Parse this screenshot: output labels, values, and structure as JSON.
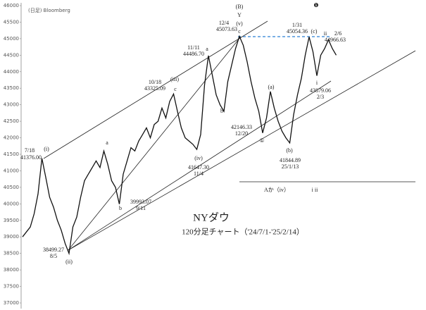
{
  "chart_data": {
    "type": "line",
    "title": "NYダウ",
    "subtitle": "120分足チャート（'24/7/1-'25/2/14）",
    "source": "(日足) Bloomberg",
    "color": "#111111",
    "ylim": [
      37000,
      46000
    ],
    "yticks": [
      37000,
      37500,
      38000,
      38500,
      39000,
      39500,
      40000,
      40500,
      41000,
      41500,
      42000,
      42500,
      43000,
      43500,
      44000,
      44500,
      45000,
      45500,
      46000
    ],
    "values": [
      39000,
      39150,
      39300,
      39700,
      40300,
      41376,
      40800,
      40200,
      39900,
      39500,
      39200,
      38800,
      38499,
      39300,
      39600,
      40200,
      40700,
      40900,
      41100,
      41300,
      41100,
      41600,
      41200,
      40700,
      40500,
      39993,
      40900,
      41300,
      41700,
      41600,
      41900,
      42100,
      42300,
      42000,
      42400,
      42500,
      42900,
      42600,
      43100,
      43325,
      42800,
      42300,
      42000,
      41900,
      41800,
      41647,
      42100,
      43600,
      44486,
      43900,
      43300,
      43000,
      42800,
      43700,
      44200,
      44700,
      45073,
      44800,
      44300,
      43700,
      43200,
      42800,
      42146,
      42600,
      43400,
      42900,
      42500,
      42200,
      42000,
      41844,
      42700,
      43300,
      43800,
      44500,
      45054,
      44600,
      43879,
      44500,
      44700,
      44966,
      44700,
      44500
    ],
    "annotations": [
      "(i)",
      "7/18",
      "41376.00",
      "(ii)",
      "38499.27",
      "8/5",
      "a",
      "b",
      "39993.07",
      "9/11",
      "(iii)",
      "c",
      "10/18",
      "43325.09",
      "(iv)",
      "41647.30",
      "11/4",
      "11/11",
      "44486.70",
      "a",
      "b",
      "(B)",
      "Y",
      "(v)",
      "c",
      "12/4",
      "45073.63",
      "42146.33",
      "12/20",
      "①",
      "(a)",
      "(b)",
      "41844.89",
      "25/1/13",
      "1/31",
      "45054.36",
      "❶",
      "(c)",
      "ii",
      "2/6",
      "44966.63",
      "i",
      "43879.06",
      "2/3",
      "Aか（iv）",
      "i ii"
    ]
  }
}
